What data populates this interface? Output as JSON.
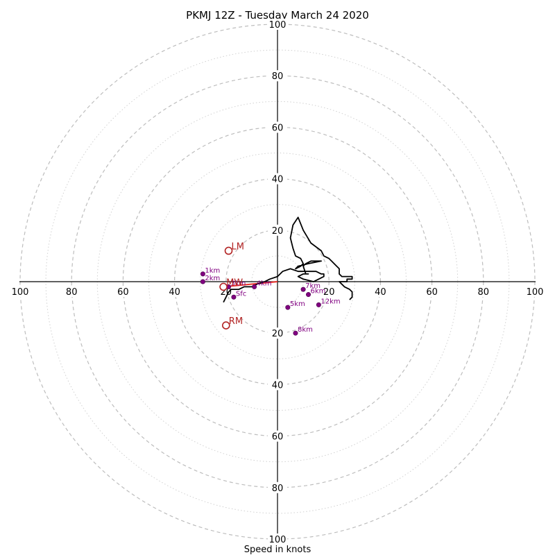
{
  "chart_data": {
    "type": "scatter",
    "subtype": "hodograph",
    "title": "PKMJ 12Z - Tuesday March 24 2020",
    "xlabel": "Speed in knots",
    "ylabel": "",
    "xlim": [
      -100,
      100
    ],
    "ylim": [
      -100,
      100
    ],
    "rings_major": [
      20,
      40,
      60,
      80,
      100
    ],
    "rings_minor": [
      10,
      30,
      50,
      70,
      90
    ],
    "x_ticks": [
      {
        "value": -100,
        "label": "100"
      },
      {
        "value": -80,
        "label": "80"
      },
      {
        "value": -60,
        "label": "60"
      },
      {
        "value": -40,
        "label": "40"
      },
      {
        "value": -20,
        "label": "20"
      },
      {
        "value": 20,
        "label": "20"
      },
      {
        "value": 40,
        "label": "40"
      },
      {
        "value": 60,
        "label": "60"
      },
      {
        "value": 80,
        "label": "80"
      },
      {
        "value": 100,
        "label": "100"
      }
    ],
    "y_ticks": [
      {
        "value": 100,
        "label": "100"
      },
      {
        "value": 80,
        "label": "80"
      },
      {
        "value": 60,
        "label": "60"
      },
      {
        "value": 40,
        "label": "40"
      },
      {
        "value": 20,
        "label": "20"
      },
      {
        "value": -20,
        "label": "20"
      },
      {
        "value": -40,
        "label": "40"
      },
      {
        "value": -60,
        "label": "60"
      },
      {
        "value": -80,
        "label": "80"
      },
      {
        "value": -100,
        "label": "100"
      }
    ],
    "hodograph": {
      "u": [
        -21,
        -20,
        -19,
        -18,
        -15,
        -13,
        -10,
        -8,
        -5,
        -3,
        0,
        2,
        5,
        8,
        12,
        15,
        17,
        18,
        18,
        16,
        14,
        10,
        8,
        10,
        12,
        11,
        10,
        11,
        13,
        16,
        17,
        12,
        8,
        7,
        9,
        10,
        9,
        7,
        6,
        5,
        6,
        8,
        10,
        13,
        17,
        18,
        20,
        21,
        24,
        24,
        25,
        27,
        29,
        29,
        28,
        27,
        27,
        26,
        24,
        25,
        26,
        28,
        29,
        29,
        28
      ],
      "v": [
        -8,
        -6,
        -4,
        -3,
        -3,
        -2,
        -2,
        -1,
        0,
        1,
        2,
        4,
        5,
        4,
        4,
        4,
        3,
        3,
        2,
        1,
        0,
        1,
        2,
        3,
        3,
        3,
        6,
        7,
        8,
        8,
        8,
        7,
        6,
        5,
        6,
        7,
        9,
        10,
        13,
        17,
        22,
        25,
        20,
        15,
        12,
        10,
        9,
        8,
        5,
        3,
        2,
        2,
        2,
        1,
        1,
        1,
        0,
        0,
        0,
        -1,
        -2,
        -3,
        -4,
        -6,
        -7
      ]
    },
    "levels": [
      {
        "label": "Sfc",
        "u": -17,
        "v": -6
      },
      {
        "label": "1km",
        "u": -29,
        "v": 3
      },
      {
        "label": "2km",
        "u": -29,
        "v": 0
      },
      {
        "label": "3km",
        "u": -19,
        "v": -2
      },
      {
        "label": "4km",
        "u": -9,
        "v": -2
      },
      {
        "label": "5km",
        "u": 4,
        "v": -10
      },
      {
        "label": "6km",
        "u": 12,
        "v": -5
      },
      {
        "label": "7km",
        "u": 10,
        "v": -3
      },
      {
        "label": "8km",
        "u": 7,
        "v": -20
      },
      {
        "label": "12km",
        "u": 16,
        "v": -9
      }
    ],
    "storm_motion": [
      {
        "label": "LM",
        "u": -19,
        "v": 12
      },
      {
        "label": "MW",
        "u": -21,
        "v": -2
      },
      {
        "label": "RM",
        "u": -20,
        "v": -17
      }
    ],
    "shear_line": {
      "u": [
        0,
        -21
      ],
      "v": [
        0,
        -2
      ]
    },
    "colors": {
      "hodograph": "#000000",
      "levels": "#800080",
      "storm_motion": "#b22222",
      "shear": "#e8302a",
      "grid": "#bdbdbd"
    }
  }
}
